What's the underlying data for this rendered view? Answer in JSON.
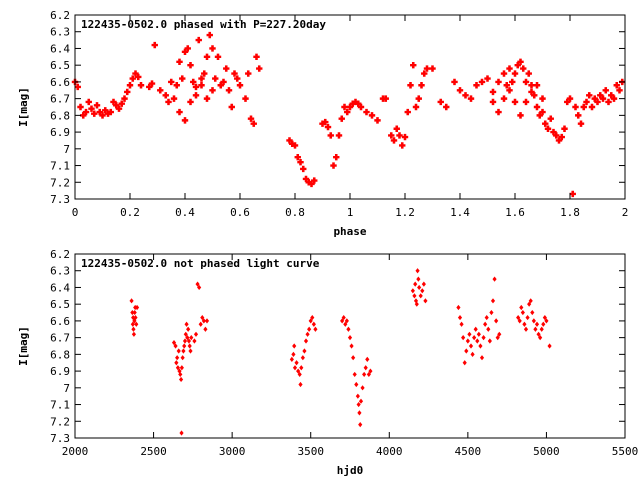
{
  "chart_data": [
    {
      "type": "scatter",
      "title": "122435-0502.0 phased with P=227.20day",
      "xlabel": "phase",
      "ylabel": "I[mag]",
      "xlim": [
        0,
        2
      ],
      "ylim": [
        7.3,
        6.2
      ],
      "y_inverted": true,
      "xticks": [
        "0",
        "0.2",
        "0.4",
        "0.6",
        "0.8",
        "1",
        "1.2",
        "1.4",
        "1.6",
        "1.8",
        "2"
      ],
      "yticks": [
        "6.2",
        "6.3",
        "6.4",
        "6.5",
        "6.6",
        "6.7",
        "6.8",
        "6.9",
        "7",
        "7.1",
        "7.2",
        "7.3"
      ],
      "marker_color": "#ff0000",
      "points": [
        [
          0.0,
          6.6
        ],
        [
          0.01,
          6.63
        ],
        [
          0.02,
          6.75
        ],
        [
          0.03,
          6.8
        ],
        [
          0.04,
          6.78
        ],
        [
          0.05,
          6.72
        ],
        [
          0.06,
          6.76
        ],
        [
          0.07,
          6.79
        ],
        [
          0.08,
          6.74
        ],
        [
          0.09,
          6.78
        ],
        [
          0.1,
          6.8
        ],
        [
          0.11,
          6.77
        ],
        [
          0.12,
          6.79
        ],
        [
          0.13,
          6.78
        ],
        [
          0.14,
          6.72
        ],
        [
          0.15,
          6.74
        ],
        [
          0.16,
          6.76
        ],
        [
          0.17,
          6.73
        ],
        [
          0.18,
          6.7
        ],
        [
          0.19,
          6.66
        ],
        [
          0.2,
          6.62
        ],
        [
          0.21,
          6.58
        ],
        [
          0.22,
          6.55
        ],
        [
          0.23,
          6.57
        ],
        [
          0.24,
          6.62
        ],
        [
          0.27,
          6.63
        ],
        [
          0.28,
          6.61
        ],
        [
          0.29,
          6.38
        ],
        [
          0.31,
          6.65
        ],
        [
          0.33,
          6.68
        ],
        [
          0.34,
          6.72
        ],
        [
          0.35,
          6.6
        ],
        [
          0.36,
          6.7
        ],
        [
          0.37,
          6.62
        ],
        [
          0.38,
          6.48
        ],
        [
          0.39,
          6.58
        ],
        [
          0.4,
          6.42
        ],
        [
          0.41,
          6.4
        ],
        [
          0.42,
          6.5
        ],
        [
          0.43,
          6.6
        ],
        [
          0.44,
          6.68
        ],
        [
          0.45,
          6.35
        ],
        [
          0.46,
          6.62
        ],
        [
          0.47,
          6.55
        ],
        [
          0.48,
          6.7
        ],
        [
          0.49,
          6.32
        ],
        [
          0.5,
          6.65
        ],
        [
          0.51,
          6.58
        ],
        [
          0.52,
          6.45
        ],
        [
          0.53,
          6.62
        ],
        [
          0.54,
          6.6
        ],
        [
          0.55,
          6.52
        ],
        [
          0.56,
          6.65
        ],
        [
          0.57,
          6.75
        ],
        [
          0.58,
          6.55
        ],
        [
          0.59,
          6.58
        ],
        [
          0.6,
          6.62
        ],
        [
          0.62,
          6.7
        ],
        [
          0.63,
          6.55
        ],
        [
          0.64,
          6.82
        ],
        [
          0.65,
          6.85
        ],
        [
          0.66,
          6.45
        ],
        [
          0.67,
          6.52
        ],
        [
          0.38,
          6.78
        ],
        [
          0.4,
          6.83
        ],
        [
          0.42,
          6.72
        ],
        [
          0.44,
          6.63
        ],
        [
          0.46,
          6.58
        ],
        [
          0.48,
          6.45
        ],
        [
          0.5,
          6.4
        ],
        [
          0.78,
          6.95
        ],
        [
          0.79,
          6.97
        ],
        [
          0.8,
          6.98
        ],
        [
          0.81,
          7.05
        ],
        [
          0.82,
          7.08
        ],
        [
          0.83,
          7.12
        ],
        [
          0.84,
          7.18
        ],
        [
          0.85,
          7.2
        ],
        [
          0.86,
          7.21
        ],
        [
          0.87,
          7.19
        ],
        [
          0.9,
          6.85
        ],
        [
          0.91,
          6.84
        ],
        [
          0.92,
          6.87
        ],
        [
          0.93,
          6.92
        ],
        [
          0.94,
          7.1
        ],
        [
          0.95,
          7.05
        ],
        [
          0.96,
          6.92
        ],
        [
          0.97,
          6.82
        ],
        [
          0.98,
          6.75
        ],
        [
          0.99,
          6.78
        ],
        [
          1.0,
          6.75
        ],
        [
          1.01,
          6.73
        ],
        [
          1.02,
          6.72
        ],
        [
          1.03,
          6.73
        ],
        [
          1.04,
          6.75
        ],
        [
          1.06,
          6.78
        ],
        [
          1.08,
          6.8
        ],
        [
          1.1,
          6.83
        ],
        [
          1.12,
          6.7
        ],
        [
          1.13,
          6.7
        ],
        [
          1.15,
          6.92
        ],
        [
          1.16,
          6.95
        ],
        [
          1.17,
          6.88
        ],
        [
          1.18,
          6.92
        ],
        [
          1.19,
          6.98
        ],
        [
          1.2,
          6.93
        ],
        [
          1.21,
          6.78
        ],
        [
          1.22,
          6.62
        ],
        [
          1.23,
          6.5
        ],
        [
          1.24,
          6.75
        ],
        [
          1.25,
          6.7
        ],
        [
          1.26,
          6.62
        ],
        [
          1.27,
          6.55
        ],
        [
          1.28,
          6.52
        ],
        [
          1.3,
          6.52
        ],
        [
          1.33,
          6.72
        ],
        [
          1.35,
          6.75
        ],
        [
          1.38,
          6.6
        ],
        [
          1.4,
          6.65
        ],
        [
          1.42,
          6.68
        ],
        [
          1.44,
          6.7
        ],
        [
          1.46,
          6.62
        ],
        [
          1.48,
          6.6
        ],
        [
          1.5,
          6.58
        ],
        [
          1.52,
          6.66
        ],
        [
          1.54,
          6.6
        ],
        [
          1.56,
          6.55
        ],
        [
          1.57,
          6.62
        ],
        [
          1.58,
          6.52
        ],
        [
          1.59,
          6.6
        ],
        [
          1.6,
          6.55
        ],
        [
          1.61,
          6.5
        ],
        [
          1.62,
          6.48
        ],
        [
          1.63,
          6.52
        ],
        [
          1.64,
          6.6
        ],
        [
          1.65,
          6.55
        ],
        [
          1.66,
          6.62
        ],
        [
          1.67,
          6.68
        ],
        [
          1.68,
          6.75
        ],
        [
          1.69,
          6.8
        ],
        [
          1.7,
          6.78
        ],
        [
          1.71,
          6.85
        ],
        [
          1.72,
          6.88
        ],
        [
          1.73,
          6.82
        ],
        [
          1.74,
          6.9
        ],
        [
          1.75,
          6.92
        ],
        [
          1.76,
          6.95
        ],
        [
          1.77,
          6.93
        ],
        [
          1.78,
          6.88
        ],
        [
          1.79,
          6.72
        ],
        [
          1.8,
          6.7
        ],
        [
          1.81,
          7.27
        ],
        [
          1.82,
          6.75
        ],
        [
          1.83,
          6.8
        ],
        [
          1.84,
          6.85
        ],
        [
          1.85,
          6.75
        ],
        [
          1.86,
          6.72
        ],
        [
          1.87,
          6.68
        ],
        [
          1.88,
          6.75
        ],
        [
          1.89,
          6.7
        ],
        [
          1.9,
          6.72
        ],
        [
          1.91,
          6.68
        ],
        [
          1.92,
          6.7
        ],
        [
          1.93,
          6.65
        ],
        [
          1.94,
          6.72
        ],
        [
          1.95,
          6.68
        ],
        [
          1.96,
          6.7
        ],
        [
          1.97,
          6.62
        ],
        [
          1.98,
          6.65
        ],
        [
          1.99,
          6.6
        ],
        [
          1.52,
          6.72
        ],
        [
          1.54,
          6.78
        ],
        [
          1.56,
          6.7
        ],
        [
          1.58,
          6.65
        ],
        [
          1.6,
          6.72
        ],
        [
          1.62,
          6.8
        ],
        [
          1.64,
          6.72
        ],
        [
          1.66,
          6.66
        ],
        [
          1.68,
          6.62
        ],
        [
          1.7,
          6.7
        ]
      ]
    },
    {
      "type": "scatter",
      "title": "122435-0502.0 not phased light curve",
      "xlabel": "hjd0",
      "ylabel": "I[mag]",
      "xlim": [
        2000,
        5500
      ],
      "ylim": [
        7.3,
        6.2
      ],
      "y_inverted": true,
      "xticks": [
        "2000",
        "2500",
        "3000",
        "3500",
        "4000",
        "4500",
        "5000",
        "5500"
      ],
      "yticks": [
        "6.2",
        "6.3",
        "6.4",
        "6.5",
        "6.6",
        "6.7",
        "6.8",
        "6.9",
        "7",
        "7.1",
        "7.2",
        "7.3"
      ],
      "marker_color": "#ff0000",
      "points": [
        [
          2360,
          6.48
        ],
        [
          2365,
          6.55
        ],
        [
          2368,
          6.62
        ],
        [
          2370,
          6.58
        ],
        [
          2372,
          6.65
        ],
        [
          2375,
          6.68
        ],
        [
          2378,
          6.6
        ],
        [
          2380,
          6.55
        ],
        [
          2383,
          6.52
        ],
        [
          2385,
          6.58
        ],
        [
          2390,
          6.62
        ],
        [
          2395,
          6.52
        ],
        [
          2630,
          6.73
        ],
        [
          2640,
          6.75
        ],
        [
          2645,
          6.85
        ],
        [
          2650,
          6.82
        ],
        [
          2655,
          6.88
        ],
        [
          2660,
          6.78
        ],
        [
          2665,
          6.9
        ],
        [
          2670,
          6.92
        ],
        [
          2675,
          6.95
        ],
        [
          2678,
          7.27
        ],
        [
          2680,
          6.88
        ],
        [
          2685,
          6.82
        ],
        [
          2690,
          6.78
        ],
        [
          2695,
          6.75
        ],
        [
          2700,
          6.72
        ],
        [
          2705,
          6.68
        ],
        [
          2710,
          6.62
        ],
        [
          2715,
          6.7
        ],
        [
          2720,
          6.65
        ],
        [
          2725,
          6.72
        ],
        [
          2730,
          6.75
        ],
        [
          2735,
          6.78
        ],
        [
          2740,
          6.7
        ],
        [
          2760,
          6.72
        ],
        [
          2770,
          6.68
        ],
        [
          2780,
          6.38
        ],
        [
          2790,
          6.4
        ],
        [
          2800,
          6.62
        ],
        [
          2810,
          6.58
        ],
        [
          2820,
          6.6
        ],
        [
          2830,
          6.65
        ],
        [
          2840,
          6.6
        ],
        [
          3380,
          6.83
        ],
        [
          3390,
          6.8
        ],
        [
          3395,
          6.75
        ],
        [
          3400,
          6.88
        ],
        [
          3410,
          6.85
        ],
        [
          3420,
          6.9
        ],
        [
          3430,
          6.92
        ],
        [
          3435,
          6.98
        ],
        [
          3440,
          6.88
        ],
        [
          3450,
          6.82
        ],
        [
          3460,
          6.78
        ],
        [
          3470,
          6.72
        ],
        [
          3480,
          6.68
        ],
        [
          3490,
          6.65
        ],
        [
          3500,
          6.6
        ],
        [
          3510,
          6.58
        ],
        [
          3520,
          6.62
        ],
        [
          3530,
          6.65
        ],
        [
          3700,
          6.6
        ],
        [
          3710,
          6.58
        ],
        [
          3720,
          6.62
        ],
        [
          3730,
          6.6
        ],
        [
          3740,
          6.65
        ],
        [
          3750,
          6.7
        ],
        [
          3760,
          6.75
        ],
        [
          3770,
          6.82
        ],
        [
          3780,
          6.92
        ],
        [
          3790,
          6.98
        ],
        [
          3800,
          7.05
        ],
        [
          3805,
          7.1
        ],
        [
          3810,
          7.15
        ],
        [
          3815,
          7.22
        ],
        [
          3820,
          7.08
        ],
        [
          3830,
          7.0
        ],
        [
          3840,
          6.92
        ],
        [
          3850,
          6.88
        ],
        [
          3860,
          6.83
        ],
        [
          3870,
          6.92
        ],
        [
          3880,
          6.9
        ],
        [
          4150,
          6.42
        ],
        [
          4160,
          6.45
        ],
        [
          4165,
          6.38
        ],
        [
          4170,
          6.48
        ],
        [
          4175,
          6.5
        ],
        [
          4180,
          6.3
        ],
        [
          4185,
          6.35
        ],
        [
          4190,
          6.4
        ],
        [
          4200,
          6.45
        ],
        [
          4210,
          6.42
        ],
        [
          4220,
          6.38
        ],
        [
          4230,
          6.48
        ],
        [
          4440,
          6.52
        ],
        [
          4450,
          6.58
        ],
        [
          4460,
          6.62
        ],
        [
          4470,
          6.7
        ],
        [
          4480,
          6.85
        ],
        [
          4490,
          6.78
        ],
        [
          4500,
          6.72
        ],
        [
          4510,
          6.68
        ],
        [
          4520,
          6.75
        ],
        [
          4530,
          6.8
        ],
        [
          4540,
          6.7
        ],
        [
          4550,
          6.65
        ],
        [
          4560,
          6.72
        ],
        [
          4570,
          6.68
        ],
        [
          4580,
          6.75
        ],
        [
          4590,
          6.82
        ],
        [
          4600,
          6.7
        ],
        [
          4610,
          6.62
        ],
        [
          4620,
          6.58
        ],
        [
          4630,
          6.65
        ],
        [
          4640,
          6.72
        ],
        [
          4650,
          6.55
        ],
        [
          4660,
          6.48
        ],
        [
          4670,
          6.35
        ],
        [
          4680,
          6.6
        ],
        [
          4690,
          6.7
        ],
        [
          4700,
          6.68
        ],
        [
          4820,
          6.58
        ],
        [
          4830,
          6.6
        ],
        [
          4840,
          6.52
        ],
        [
          4850,
          6.55
        ],
        [
          4860,
          6.62
        ],
        [
          4870,
          6.65
        ],
        [
          4880,
          6.58
        ],
        [
          4890,
          6.5
        ],
        [
          4900,
          6.48
        ],
        [
          4910,
          6.55
        ],
        [
          4920,
          6.6
        ],
        [
          4930,
          6.65
        ],
        [
          4940,
          6.62
        ],
        [
          4950,
          6.68
        ],
        [
          4960,
          6.7
        ],
        [
          4970,
          6.65
        ],
        [
          4980,
          6.62
        ],
        [
          4990,
          6.58
        ],
        [
          5000,
          6.6
        ],
        [
          5020,
          6.75
        ]
      ]
    }
  ]
}
